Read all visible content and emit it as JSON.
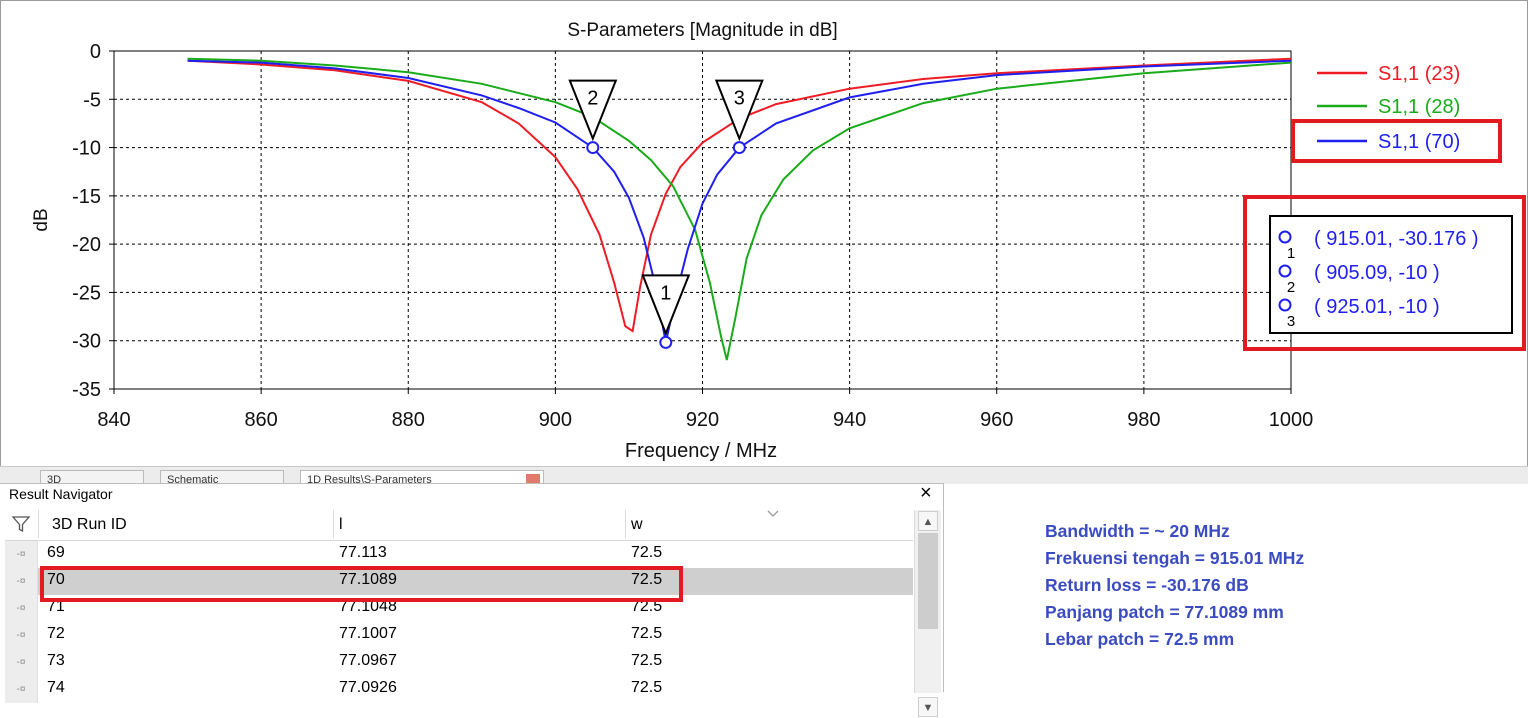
{
  "plot": {
    "title": "S-Parameters [Magnitude in dB]",
    "xlabel": "Frequency / MHz",
    "ylabel": "dB",
    "legend": [
      {
        "label": "S1,1 (23)",
        "color": "#ee1c24"
      },
      {
        "label": "S1,1 (28)",
        "color": "#1aab1a"
      },
      {
        "label": "S1,1 (70)",
        "color": "#1f1fee"
      }
    ],
    "marker_table": [
      {
        "id": "1",
        "text": "( 915.01, -30.176 )"
      },
      {
        "id": "2",
        "text": "( 905.09, -10 )"
      },
      {
        "id": "3",
        "text": "( 925.01, -10 )"
      }
    ]
  },
  "chart_data": {
    "type": "line",
    "title": "S-Parameters [Magnitude in dB]",
    "xlabel": "Frequency / MHz",
    "ylabel": "dB",
    "xlim": [
      840,
      1000
    ],
    "ylim": [
      -35,
      0
    ],
    "xticks": [
      840,
      860,
      880,
      900,
      920,
      940,
      960,
      980,
      1000
    ],
    "yticks": [
      0,
      -5,
      -10,
      -15,
      -20,
      -25,
      -30,
      -35
    ],
    "grid": true,
    "legend_position": "right",
    "series": [
      {
        "name": "S1,1 (23)",
        "color": "#ee1c24",
        "x": [
          850,
          860,
          870,
          880,
          890,
          895,
          900,
          903,
          906,
          908,
          909.5,
          910.5,
          911.5,
          913,
          915,
          917,
          920,
          925,
          930,
          940,
          950,
          960,
          980,
          1000
        ],
        "y": [
          -1.0,
          -1.4,
          -2.0,
          -3.1,
          -5.3,
          -7.5,
          -11.0,
          -14.3,
          -19.0,
          -24.0,
          -28.5,
          -29.0,
          -24.5,
          -19.0,
          -14.8,
          -12.0,
          -9.5,
          -7.0,
          -5.5,
          -3.9,
          -2.9,
          -2.3,
          -1.5,
          -0.8
        ]
      },
      {
        "name": "S1,1 (28)",
        "color": "#1aab1a",
        "x": [
          850,
          860,
          870,
          880,
          890,
          900,
          905,
          910,
          913,
          916,
          919,
          921,
          922.5,
          923.3,
          924.5,
          926,
          928,
          931,
          935,
          940,
          950,
          960,
          980,
          1000
        ],
        "y": [
          -0.8,
          -1.0,
          -1.5,
          -2.2,
          -3.4,
          -5.3,
          -6.8,
          -9.3,
          -11.3,
          -14.0,
          -18.5,
          -24.0,
          -29.5,
          -32.0,
          -27.5,
          -21.5,
          -17.0,
          -13.3,
          -10.3,
          -8.0,
          -5.4,
          -3.9,
          -2.3,
          -1.2
        ]
      },
      {
        "name": "S1,1 (70)",
        "color": "#1f1fee",
        "x": [
          850,
          860,
          870,
          880,
          890,
          895,
          900,
          905.09,
          908,
          910,
          912,
          913.5,
          915.01,
          916.5,
          918,
          920,
          922,
          925.01,
          930,
          940,
          950,
          960,
          980,
          1000
        ],
        "y": [
          -1.0,
          -1.2,
          -1.8,
          -2.8,
          -4.6,
          -5.9,
          -7.4,
          -10.0,
          -12.5,
          -15.2,
          -19.3,
          -24.0,
          -30.176,
          -25.0,
          -20.5,
          -15.8,
          -12.8,
          -10.0,
          -7.5,
          -4.8,
          -3.4,
          -2.5,
          -1.6,
          -1.0
        ]
      }
    ],
    "markers": [
      {
        "id": "1",
        "x": 915.01,
        "y": -30.176
      },
      {
        "id": "2",
        "x": 905.09,
        "y": -10
      },
      {
        "id": "3",
        "x": 925.01,
        "y": -10
      }
    ]
  },
  "tabs": [
    "3D",
    "Schematic",
    "1D Results\\S-Parameters"
  ],
  "navigator": {
    "title": "Result Navigator",
    "close": "×",
    "columns": [
      "3D Run ID",
      "l",
      "w"
    ],
    "rows": [
      {
        "id": "69",
        "l": "77.113",
        "w": "72.5"
      },
      {
        "id": "70",
        "l": "77.1089",
        "w": "72.5"
      },
      {
        "id": "71",
        "l": "77.1048",
        "w": "72.5"
      },
      {
        "id": "72",
        "l": "77.1007",
        "w": "72.5"
      },
      {
        "id": "73",
        "l": "77.0967",
        "w": "72.5"
      },
      {
        "id": "74",
        "l": "77.0926",
        "w": "72.5"
      }
    ],
    "selected_row": "70"
  },
  "summary": {
    "bandwidth": "Bandwidth = ~ 20 MHz",
    "center": "Frekuensi tengah = 915.01 MHz",
    "return_loss": "Return loss = -30.176 dB",
    "length": "Panjang patch = 77.1089 mm",
    "width": "Lebar patch = 72.5 mm"
  }
}
